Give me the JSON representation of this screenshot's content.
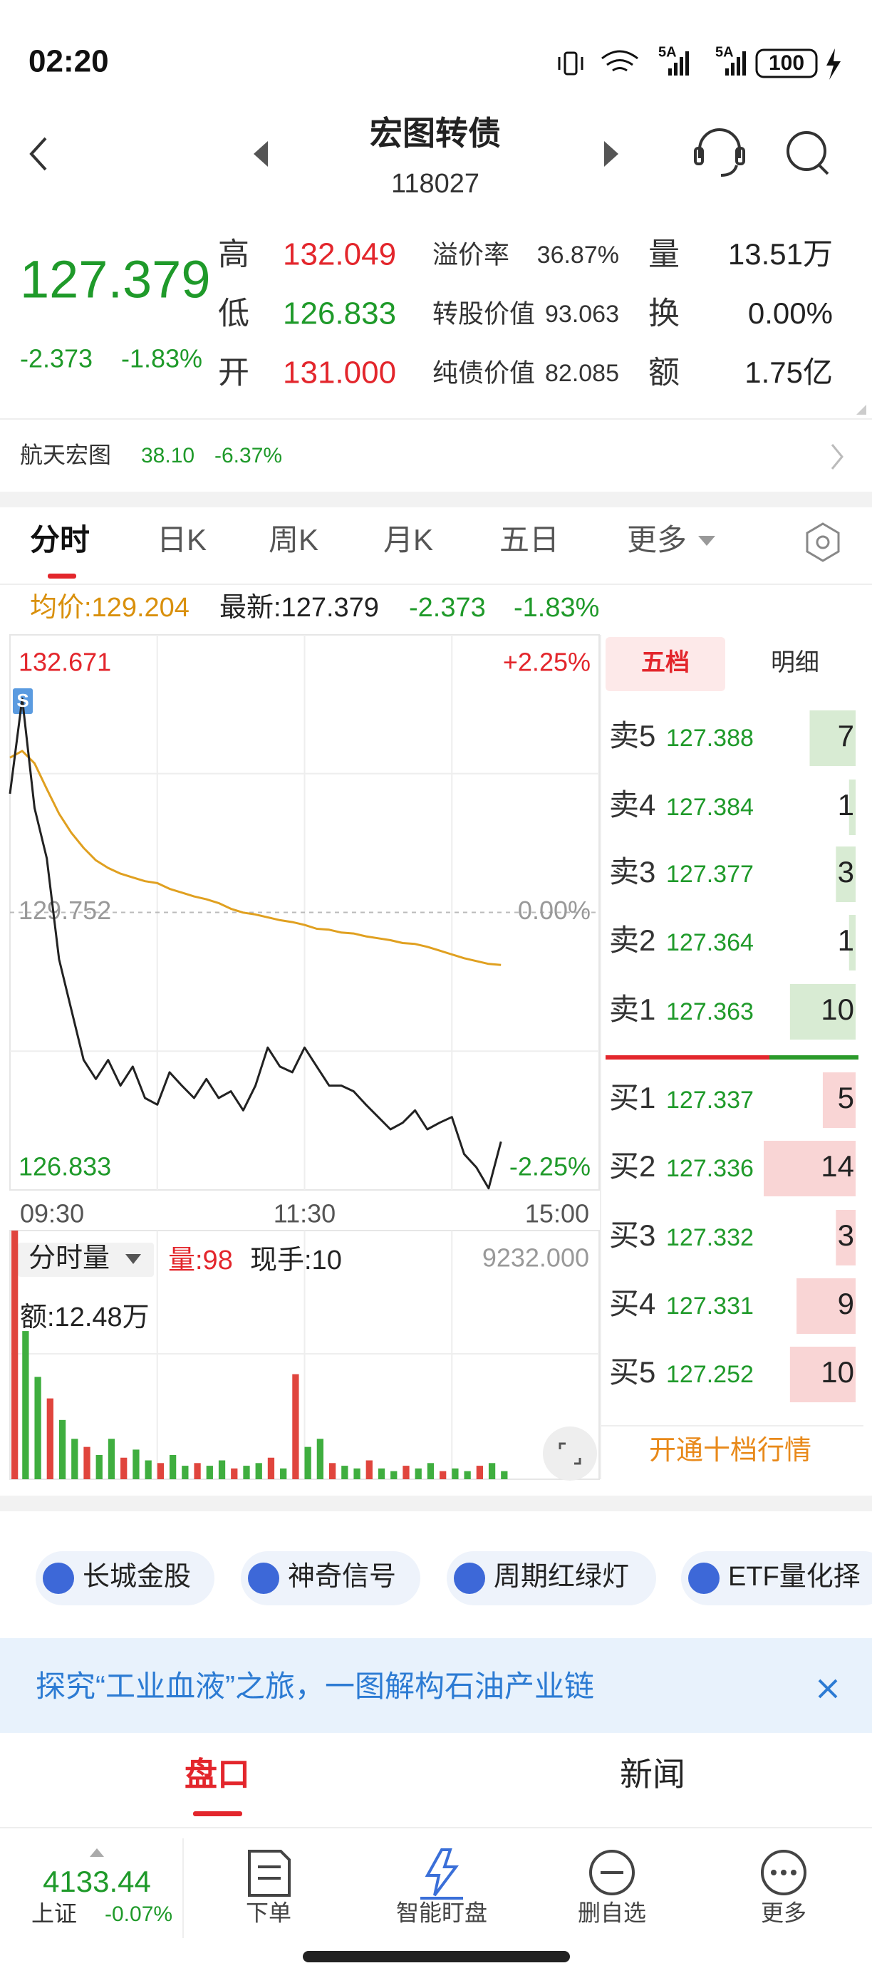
{
  "status_bar": {
    "time": "02:20",
    "network": [
      "5A",
      "5A"
    ],
    "battery": "100"
  },
  "header": {
    "title": "宏图转债",
    "code": "118027"
  },
  "quote": {
    "price": "127.379",
    "change": "-2.373",
    "change_pct": "-1.83%",
    "stats": [
      [
        {
          "label": "高",
          "value": "132.049"
        },
        {
          "label": "溢价率",
          "value": "36.87%"
        },
        {
          "label": "量",
          "value": "13.51万"
        }
      ],
      [
        {
          "label": "低",
          "value": "126.833"
        },
        {
          "label": "转股价值",
          "value": "93.063"
        },
        {
          "label": "换",
          "value": "0.00%"
        }
      ],
      [
        {
          "label": "开",
          "value": "131.000"
        },
        {
          "label": "纯债价值",
          "value": "82.085"
        },
        {
          "label": "额",
          "value": "1.75亿"
        }
      ]
    ]
  },
  "related_stock": {
    "name": "航天宏图",
    "price": "38.10",
    "change_pct": "-6.37%"
  },
  "chart_tabs": [
    "分时",
    "日K",
    "周K",
    "月K",
    "五日",
    "更多"
  ],
  "intraday_info": {
    "avg": "均价:129.204",
    "latest": "最新:127.379",
    "change": "-2.373",
    "change_pct": "-1.83%"
  },
  "chart_data": [
    {
      "type": "line",
      "categories": [
        "09:30",
        null,
        null,
        null,
        null,
        null,
        null,
        null,
        null,
        null,
        null,
        null,
        null,
        null,
        null,
        null,
        null,
        null,
        null,
        null,
        null,
        null,
        null,
        null,
        "11:30",
        null,
        null,
        null,
        null,
        null,
        null,
        null,
        null,
        null,
        null,
        null,
        null,
        null,
        null,
        null,
        null,
        null,
        null,
        null,
        null,
        null,
        null,
        null,
        "15:00"
      ],
      "series": [
        {
          "color": "#222222",
          "values": [
            131.0,
            132.0,
            130.85,
            130.32,
            129.26,
            128.73,
            128.2,
            128.0,
            128.2,
            127.93,
            128.13,
            127.8,
            127.73,
            128.07,
            127.93,
            127.8,
            128.0,
            127.8,
            127.87,
            127.67,
            127.93,
            128.33,
            128.13,
            128.07,
            128.33,
            128.13,
            127.93,
            127.93,
            127.87,
            127.73,
            127.6,
            127.47,
            127.54,
            127.67,
            127.47,
            127.54,
            127.6,
            127.21,
            127.07,
            126.85,
            127.34,
            null,
            null,
            null,
            null,
            null,
            null,
            null,
            null
          ]
        },
        {
          "color": "#e0a020",
          "values": [
            131.38,
            131.45,
            131.32,
            131.05,
            130.79,
            130.59,
            130.43,
            130.3,
            130.22,
            130.16,
            130.12,
            130.08,
            130.06,
            130.0,
            129.96,
            129.92,
            129.89,
            129.85,
            129.79,
            129.75,
            129.73,
            129.7,
            129.67,
            129.65,
            129.62,
            129.58,
            129.57,
            129.54,
            129.53,
            129.5,
            129.48,
            129.46,
            129.43,
            129.42,
            129.39,
            129.35,
            129.31,
            129.27,
            129.24,
            129.21,
            129.2,
            null,
            null,
            null,
            null,
            null,
            null,
            null,
            null
          ]
        }
      ],
      "ylim": [
        126.833,
        132.671
      ],
      "yticks": [
        132.671,
        129.752,
        126.833
      ],
      "y2lim": [
        -2.25,
        2.25
      ],
      "y2ticks": [
        {
          "value": 2.25,
          "label": "+2.25%"
        },
        {
          "value": 0,
          "label": "0.00%"
        },
        {
          "value": -2.25,
          "label": "-2.25%"
        }
      ]
    },
    {
      "type": "bar",
      "categories": [
        "09:30",
        null,
        null,
        null,
        null,
        null,
        null,
        null,
        null,
        null,
        null,
        null,
        null,
        null,
        null,
        null,
        null,
        null,
        null,
        null,
        null,
        null,
        null,
        null,
        "11:30",
        null,
        null,
        null,
        null,
        null,
        null,
        null,
        null,
        null,
        null,
        null,
        null,
        null,
        null,
        null,
        null,
        null,
        null,
        null,
        null,
        null,
        null,
        null,
        "15:00"
      ],
      "values": [
        9232,
        5500,
        3800,
        3000,
        2200,
        1500,
        1200,
        900,
        1500,
        800,
        1100,
        700,
        600,
        900,
        500,
        600,
        500,
        700,
        400,
        500,
        600,
        800,
        400,
        3900,
        1200,
        1500,
        600,
        500,
        400,
        700,
        400,
        300,
        500,
        400,
        600,
        300,
        400,
        300,
        500,
        600,
        300,
        null,
        null,
        null,
        null,
        null,
        null,
        null,
        null
      ],
      "colors": [
        "#e0453d",
        "#3fae3f",
        "#3fae3f",
        "#e0453d",
        "#3fae3f",
        "#3fae3f",
        "#e0453d",
        "#3fae3f",
        "#3fae3f",
        "#e0453d",
        "#3fae3f",
        "#3fae3f",
        "#e0453d",
        "#3fae3f",
        "#3fae3f",
        "#e0453d",
        "#3fae3f",
        "#3fae3f",
        "#e0453d",
        "#3fae3f",
        "#3fae3f",
        "#e0453d",
        "#3fae3f",
        "#e0453d",
        "#3fae3f",
        "#3fae3f",
        "#e0453d",
        "#3fae3f",
        "#3fae3f",
        "#e0453d",
        "#3fae3f",
        "#3fae3f",
        "#e0453d",
        "#3fae3f",
        "#3fae3f",
        "#e0453d",
        "#3fae3f",
        "#3fae3f",
        "#e0453d",
        "#3fae3f",
        "#3fae3f",
        null,
        null,
        null,
        null,
        null,
        null,
        null,
        null
      ],
      "ylim": [
        0,
        9232
      ],
      "yticks": [
        {
          "value": 9232,
          "label": "9232.000"
        }
      ]
    }
  ],
  "volume_info": {
    "selector": "分时量",
    "volume": "量:98",
    "current_hand": "现手:10",
    "amount": "额:12.48万"
  },
  "signal_marker": "S",
  "order_book": {
    "tabs": [
      "五档",
      "明细"
    ],
    "asks": [
      {
        "label": "卖5",
        "price": "127.388",
        "volume": 7
      },
      {
        "label": "卖4",
        "price": "127.384",
        "volume": 1
      },
      {
        "label": "卖3",
        "price": "127.377",
        "volume": 3
      },
      {
        "label": "卖2",
        "price": "127.364",
        "volume": 1
      },
      {
        "label": "卖1",
        "price": "127.363",
        "volume": 10
      }
    ],
    "bids": [
      {
        "label": "买1",
        "price": "127.337",
        "volume": 5
      },
      {
        "label": "买2",
        "price": "127.336",
        "volume": 14
      },
      {
        "label": "买3",
        "price": "127.332",
        "volume": 3
      },
      {
        "label": "买4",
        "price": "127.331",
        "volume": 9
      },
      {
        "label": "买5",
        "price": "127.252",
        "volume": 10
      }
    ],
    "upgrade": "开通十档行情"
  },
  "features": [
    "长城金股",
    "神奇信号",
    "周期红绿灯",
    "ETF量化择"
  ],
  "banner": "探究“工业血液”之旅，一图解构石油产业链",
  "bottom_tabs": [
    "盘口",
    "新闻"
  ],
  "index": {
    "value": "4133.44",
    "name": "上证",
    "change_pct": "-0.07%"
  },
  "nav": [
    "下单",
    "智能盯盘",
    "删自选",
    "更多"
  ]
}
